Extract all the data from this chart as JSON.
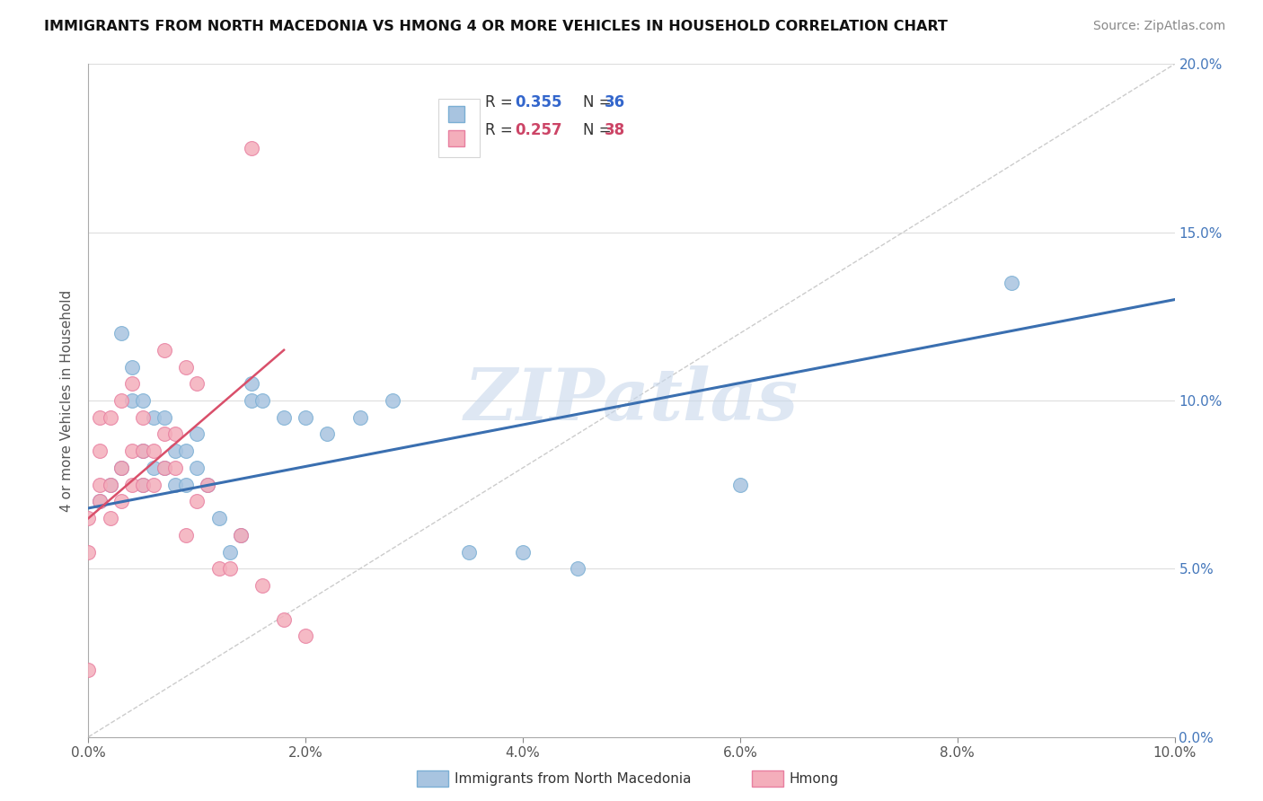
{
  "title": "IMMIGRANTS FROM NORTH MACEDONIA VS HMONG 4 OR MORE VEHICLES IN HOUSEHOLD CORRELATION CHART",
  "source": "Source: ZipAtlas.com",
  "ylabel": "4 or more Vehicles in Household",
  "xlim": [
    0.0,
    0.1
  ],
  "ylim": [
    0.0,
    0.2
  ],
  "xticks": [
    0.0,
    0.02,
    0.04,
    0.06,
    0.08,
    0.1
  ],
  "yticks": [
    0.0,
    0.05,
    0.1,
    0.15,
    0.2
  ],
  "legend1_R": "0.355",
  "legend1_N": "36",
  "legend2_R": "0.257",
  "legend2_N": "38",
  "blue_color": "#A8C4E0",
  "pink_color": "#F4AEBB",
  "blue_edge_color": "#7BAFD4",
  "pink_edge_color": "#E87FA0",
  "blue_line_color": "#3A6FB0",
  "pink_line_color": "#D94F6A",
  "watermark_color": "#C8D8EC",
  "watermark": "ZIPatlas",
  "blue_x": [
    0.001,
    0.002,
    0.003,
    0.003,
    0.004,
    0.004,
    0.005,
    0.005,
    0.005,
    0.006,
    0.006,
    0.007,
    0.007,
    0.008,
    0.008,
    0.009,
    0.009,
    0.01,
    0.01,
    0.011,
    0.012,
    0.013,
    0.014,
    0.015,
    0.015,
    0.016,
    0.018,
    0.02,
    0.022,
    0.025,
    0.028,
    0.035,
    0.04,
    0.045,
    0.06,
    0.085
  ],
  "blue_y": [
    0.07,
    0.075,
    0.08,
    0.12,
    0.1,
    0.11,
    0.075,
    0.085,
    0.1,
    0.08,
    0.095,
    0.08,
    0.095,
    0.075,
    0.085,
    0.075,
    0.085,
    0.08,
    0.09,
    0.075,
    0.065,
    0.055,
    0.06,
    0.1,
    0.105,
    0.1,
    0.095,
    0.095,
    0.09,
    0.095,
    0.1,
    0.055,
    0.055,
    0.05,
    0.075,
    0.135
  ],
  "pink_x": [
    0.0,
    0.0,
    0.0,
    0.001,
    0.001,
    0.001,
    0.001,
    0.002,
    0.002,
    0.002,
    0.003,
    0.003,
    0.003,
    0.004,
    0.004,
    0.004,
    0.005,
    0.005,
    0.005,
    0.006,
    0.006,
    0.007,
    0.007,
    0.007,
    0.008,
    0.008,
    0.009,
    0.009,
    0.01,
    0.01,
    0.011,
    0.012,
    0.013,
    0.014,
    0.015,
    0.016,
    0.018,
    0.02
  ],
  "pink_y": [
    0.055,
    0.065,
    0.02,
    0.07,
    0.075,
    0.085,
    0.095,
    0.065,
    0.075,
    0.095,
    0.07,
    0.08,
    0.1,
    0.075,
    0.085,
    0.105,
    0.075,
    0.085,
    0.095,
    0.075,
    0.085,
    0.08,
    0.09,
    0.115,
    0.08,
    0.09,
    0.06,
    0.11,
    0.07,
    0.105,
    0.075,
    0.05,
    0.05,
    0.06,
    0.175,
    0.045,
    0.035,
    0.03
  ]
}
